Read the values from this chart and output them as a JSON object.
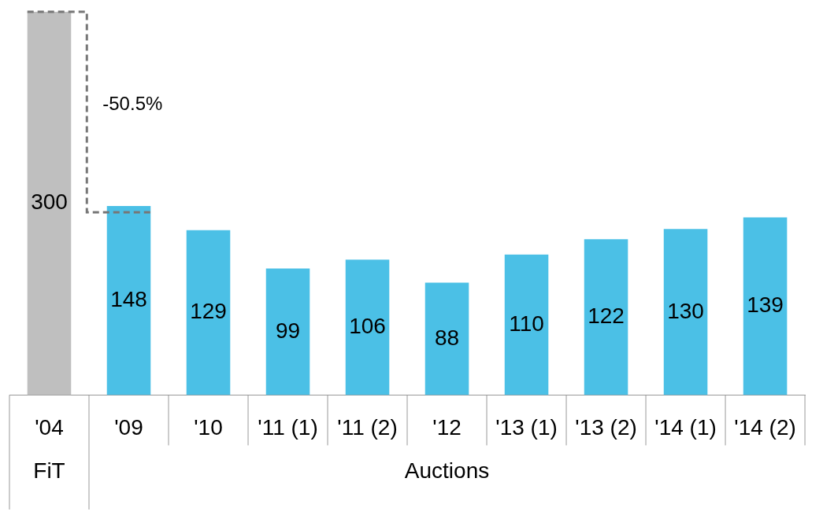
{
  "chart_data": {
    "type": "bar",
    "categories": [
      "'04",
      "'09",
      "'10",
      "'11 (1)",
      "'11 (2)",
      "'12",
      "'13 (1)",
      "'13 (2)",
      "'14 (1)",
      "'14 (2)"
    ],
    "values": [
      300,
      148,
      129,
      99,
      106,
      88,
      110,
      122,
      130,
      139
    ],
    "colors": [
      "#bfbfbf",
      "#4bc0e6",
      "#4bc0e6",
      "#4bc0e6",
      "#4bc0e6",
      "#4bc0e6",
      "#4bc0e6",
      "#4bc0e6",
      "#4bc0e6",
      "#4bc0e6"
    ],
    "data_labels": true,
    "annotations": [
      "-50.5%",
      "FiT",
      "Auctions"
    ],
    "legend": false
  }
}
